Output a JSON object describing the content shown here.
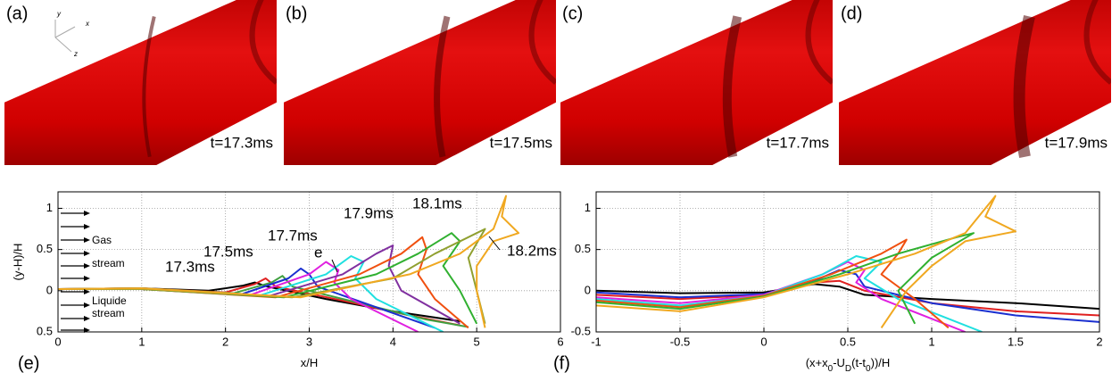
{
  "panels": [
    {
      "label": "(a)",
      "time": "t=17.3ms"
    },
    {
      "label": "(b)",
      "time": "t=17.5ms"
    },
    {
      "label": "(c)",
      "time": "t=17.7ms"
    },
    {
      "label": "(d)",
      "time": "t=17.9ms"
    }
  ],
  "axes_labels": [
    "y",
    "x",
    "z"
  ],
  "chart_data": [
    {
      "type": "line",
      "panel_label": "(e)",
      "xlabel": [
        "x/H"
      ],
      "ylabel": "(y-H)/H",
      "xlim": [
        0,
        6
      ],
      "ylim": [
        -0.5,
        1.2
      ],
      "xticks": [
        0,
        1,
        2,
        3,
        4,
        5,
        6
      ],
      "yticks": [
        {
          "value": -0.5,
          "label": "0.5"
        },
        0,
        0.5,
        1
      ],
      "grid": true,
      "annotations": [
        "Gas",
        "stream",
        "Liquide",
        "stream",
        "17.3ms",
        "17.5ms",
        "17.7ms",
        "e",
        "17.9ms",
        "18.1ms",
        "18.2ms"
      ],
      "series": [
        {
          "color": "#000000",
          "x": [
            0,
            1,
            1.8,
            2.2,
            2.35,
            2.5,
            3.2,
            4,
            4.8
          ],
          "values": [
            0.02,
            0.03,
            0,
            0.06,
            0.1,
            0.05,
            -0.1,
            -0.25,
            -0.37
          ]
        },
        {
          "color": "#e02020",
          "x": [
            0,
            1,
            2,
            2.35,
            2.48,
            2.6,
            3.4,
            4.2,
            4.8
          ],
          "values": [
            0.02,
            0.03,
            -0.02,
            0.08,
            0.15,
            0.05,
            -0.12,
            -0.3,
            -0.42
          ]
        },
        {
          "color": "#40a040",
          "x": [
            0,
            1,
            2.1,
            2.55,
            2.68,
            2.8,
            3.6,
            4.4,
            4.9
          ],
          "values": [
            0.02,
            0.03,
            -0.03,
            0.1,
            0.18,
            0.05,
            -0.15,
            -0.35,
            -0.44
          ]
        },
        {
          "color": "#1a2fd0",
          "x": [
            0,
            1,
            2.2,
            2.75,
            2.9,
            3.0,
            3.1,
            3.8,
            4.5
          ],
          "values": [
            0.02,
            0.02,
            -0.04,
            0.15,
            0.27,
            0.2,
            0.05,
            -0.2,
            -0.45
          ]
        },
        {
          "color": "#e020e0",
          "x": [
            0,
            1,
            2.3,
            3.0,
            3.2,
            3.35,
            3.3,
            3.5,
            4.3
          ],
          "values": [
            0.02,
            0.02,
            -0.05,
            0.2,
            0.35,
            0.25,
            0.1,
            -0.1,
            -0.5
          ]
        },
        {
          "color": "#20e0e0",
          "x": [
            0,
            1,
            2.4,
            3.2,
            3.5,
            3.65,
            3.55,
            3.8,
            4.6
          ],
          "values": [
            0.02,
            0.02,
            -0.06,
            0.2,
            0.42,
            0.35,
            0.15,
            -0.1,
            -0.5
          ]
        },
        {
          "color": "#8030a0",
          "x": [
            0,
            1,
            2.5,
            3.4,
            3.8,
            4.0,
            3.95,
            4.1,
            4.8
          ],
          "values": [
            0.02,
            0.02,
            -0.07,
            0.2,
            0.45,
            0.55,
            0.3,
            0,
            -0.4
          ]
        },
        {
          "color": "#f05010",
          "x": [
            0,
            1,
            2.6,
            3.6,
            4.1,
            4.35,
            4.4,
            4.3,
            4.5,
            4.9
          ],
          "values": [
            0.02,
            0.02,
            -0.08,
            0.2,
            0.45,
            0.65,
            0.5,
            0.2,
            -0.1,
            -0.45
          ]
        },
        {
          "color": "#30b030",
          "x": [
            0,
            1,
            2.7,
            3.8,
            4.3,
            4.7,
            4.8,
            4.6,
            4.8,
            5.0
          ],
          "values": [
            0.02,
            0.02,
            -0.08,
            0.2,
            0.45,
            0.7,
            0.6,
            0.3,
            0,
            -0.4
          ]
        },
        {
          "color": "#90a030",
          "x": [
            0,
            1,
            2.8,
            4.0,
            4.5,
            5.0,
            5.1,
            4.9,
            5.1
          ],
          "values": [
            0.02,
            0.02,
            -0.08,
            0.15,
            0.45,
            0.7,
            0.75,
            0.4,
            -0.4
          ]
        },
        {
          "color": "#f0a820",
          "x": [
            0,
            1,
            2.9,
            4.2,
            4.8,
            5.2,
            5.35,
            5.3,
            5.5,
            5.2,
            5.0,
            5.0,
            5.1
          ],
          "values": [
            0.02,
            0.03,
            -0.08,
            0.2,
            0.45,
            0.75,
            1.15,
            0.9,
            0.7,
            0.6,
            0.3,
            0,
            -0.45
          ]
        }
      ]
    },
    {
      "type": "line",
      "panel_label": "(f)",
      "xlabel": [
        "(x+x",
        "0",
        "-U",
        "D",
        "(t-t",
        "0",
        "))/H"
      ],
      "xlim": [
        -1,
        2
      ],
      "ylim": [
        -0.5,
        1.2
      ],
      "xticks": [
        -1,
        -0.5,
        0,
        0.5,
        1,
        1.5,
        2
      ],
      "yticks": [
        -0.5,
        0,
        0.5,
        1
      ],
      "grid": true,
      "series": [
        {
          "color": "#000000",
          "x": [
            -1,
            -0.5,
            0,
            0.3,
            0.45,
            0.6,
            1,
            1.5,
            2
          ],
          "values": [
            0,
            -0.03,
            -0.02,
            0.08,
            0.05,
            -0.05,
            -0.1,
            -0.15,
            -0.22
          ]
        },
        {
          "color": "#e02020",
          "x": [
            -1,
            -0.5,
            0,
            0.3,
            0.45,
            0.6,
            1,
            1.5,
            2
          ],
          "values": [
            -0.05,
            -0.1,
            -0.05,
            0.1,
            0.12,
            0,
            -0.15,
            -0.25,
            -0.3
          ]
        },
        {
          "color": "#1a2fd0",
          "x": [
            -1,
            -0.5,
            0,
            0.3,
            0.45,
            0.55,
            0.6,
            1,
            1.5,
            2
          ],
          "values": [
            -0.02,
            -0.08,
            -0.04,
            0.12,
            0.25,
            0.2,
            0.05,
            -0.15,
            -0.3,
            -0.38
          ]
        },
        {
          "color": "#e020e0",
          "x": [
            -1,
            -0.5,
            0,
            0.35,
            0.5,
            0.6,
            0.55,
            0.7,
            1.2
          ],
          "values": [
            -0.08,
            -0.15,
            -0.05,
            0.2,
            0.35,
            0.25,
            0.1,
            -0.1,
            -0.5
          ]
        },
        {
          "color": "#20e0e0",
          "x": [
            -1,
            -0.5,
            0,
            0.35,
            0.55,
            0.7,
            0.6,
            0.8,
            1.3
          ],
          "values": [
            -0.1,
            -0.18,
            -0.06,
            0.2,
            0.42,
            0.35,
            0.15,
            -0.1,
            -0.5
          ]
        },
        {
          "color": "#f05010",
          "x": [
            -1,
            -0.5,
            0,
            0.4,
            0.7,
            0.85,
            0.8,
            0.7,
            0.9,
            1.1
          ],
          "values": [
            -0.12,
            -0.2,
            -0.06,
            0.2,
            0.45,
            0.62,
            0.45,
            0.2,
            -0.1,
            -0.45
          ]
        },
        {
          "color": "#30b030",
          "x": [
            -1,
            -0.5,
            0,
            0.45,
            0.8,
            1.15,
            1.25,
            1.0,
            0.8,
            0.9
          ],
          "values": [
            -0.14,
            -0.22,
            -0.07,
            0.2,
            0.45,
            0.65,
            0.7,
            0.4,
            0,
            -0.4
          ]
        },
        {
          "color": "#f0a820",
          "x": [
            -1,
            -0.5,
            0,
            0.5,
            0.9,
            1.2,
            1.38,
            1.32,
            1.5,
            1.2,
            1.0,
            0.85,
            0.7
          ],
          "values": [
            -0.18,
            -0.25,
            -0.08,
            0.2,
            0.45,
            0.7,
            1.15,
            0.9,
            0.72,
            0.6,
            0.3,
            0,
            -0.45
          ]
        }
      ]
    }
  ]
}
